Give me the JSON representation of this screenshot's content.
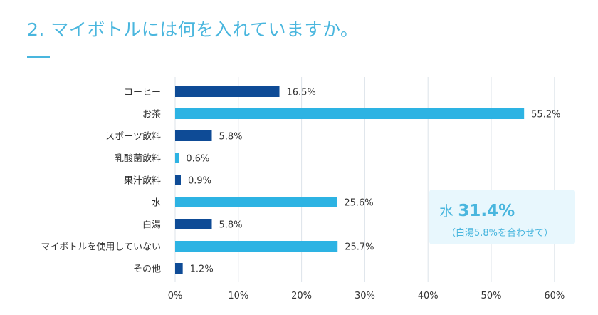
{
  "title": "2. マイボトルには何を入れていますか。",
  "colors": {
    "accent": "#49b6de",
    "dark_bar": "#0e4b96",
    "light_bar": "#2db3e3",
    "callout_bg": "#e8f7fd",
    "grid": "#dde3ea",
    "text": "#333333"
  },
  "callout": {
    "prefix": "水",
    "value": "31.4%",
    "note": "（白湯5.8%を合わせて）"
  },
  "chart_data": {
    "type": "bar",
    "orientation": "horizontal",
    "categories": [
      "コーヒー",
      "お茶",
      "スポーツ飲料",
      "乳酸菌飲料",
      "果汁飲料",
      "水",
      "白湯",
      "マイボトルを使用していない",
      "その他"
    ],
    "values": [
      16.5,
      55.2,
      5.8,
      0.6,
      0.9,
      25.6,
      5.8,
      25.7,
      1.2
    ],
    "value_labels": [
      "16.5%",
      "55.2%",
      "5.8%",
      "0.6%",
      "0.9%",
      "25.6%",
      "5.8%",
      "25.7%",
      "1.2%"
    ],
    "bar_colors": [
      "dark",
      "light",
      "dark",
      "light",
      "dark",
      "light",
      "dark",
      "light",
      "dark"
    ],
    "x_ticks": [
      "0%",
      "10%",
      "20%",
      "30%",
      "40%",
      "50%",
      "60%"
    ],
    "xlim": [
      0,
      60
    ],
    "grid": true
  }
}
